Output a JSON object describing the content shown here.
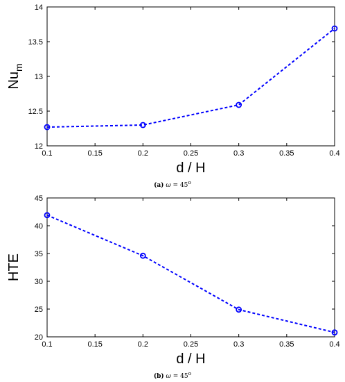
{
  "chart_data": [
    {
      "type": "line",
      "x": [
        0.1,
        0.2,
        0.3,
        0.4
      ],
      "series": [
        {
          "values": [
            12.27,
            12.3,
            12.59,
            13.69
          ],
          "color": "#0000ff",
          "marker": "circle",
          "line_style": "dashed"
        }
      ],
      "xlabel": "d / H",
      "ylabel": "Nu",
      "ylabel_subscript": "m",
      "xlim": [
        0.1,
        0.4
      ],
      "ylim": [
        12,
        14
      ],
      "xticks": [
        "0.1",
        "0.15",
        "0.2",
        "0.25",
        "0.3",
        "0.35",
        "0.4"
      ],
      "yticks": [
        "12",
        "12.5",
        "13",
        "13.5",
        "14"
      ],
      "grid": false,
      "caption": {
        "label": "(a)",
        "symbol": "ω",
        "eq": " = 45",
        "sup": "o"
      }
    },
    {
      "type": "line",
      "x": [
        0.1,
        0.2,
        0.3,
        0.4
      ],
      "series": [
        {
          "values": [
            41.9,
            34.6,
            24.9,
            20.8
          ],
          "color": "#0000ff",
          "marker": "circle",
          "line_style": "dashed"
        }
      ],
      "xlabel": "d / H",
      "ylabel": "HTE",
      "xlim": [
        0.1,
        0.4
      ],
      "ylim": [
        20,
        45
      ],
      "xticks": [
        "0.1",
        "0.15",
        "0.2",
        "0.25",
        "0.3",
        "0.35",
        "0.4"
      ],
      "yticks": [
        "20",
        "25",
        "30",
        "35",
        "40",
        "45"
      ],
      "grid": false,
      "caption": {
        "label": "(b)",
        "symbol": "ω",
        "eq": " = 45",
        "sup": "o"
      }
    }
  ]
}
